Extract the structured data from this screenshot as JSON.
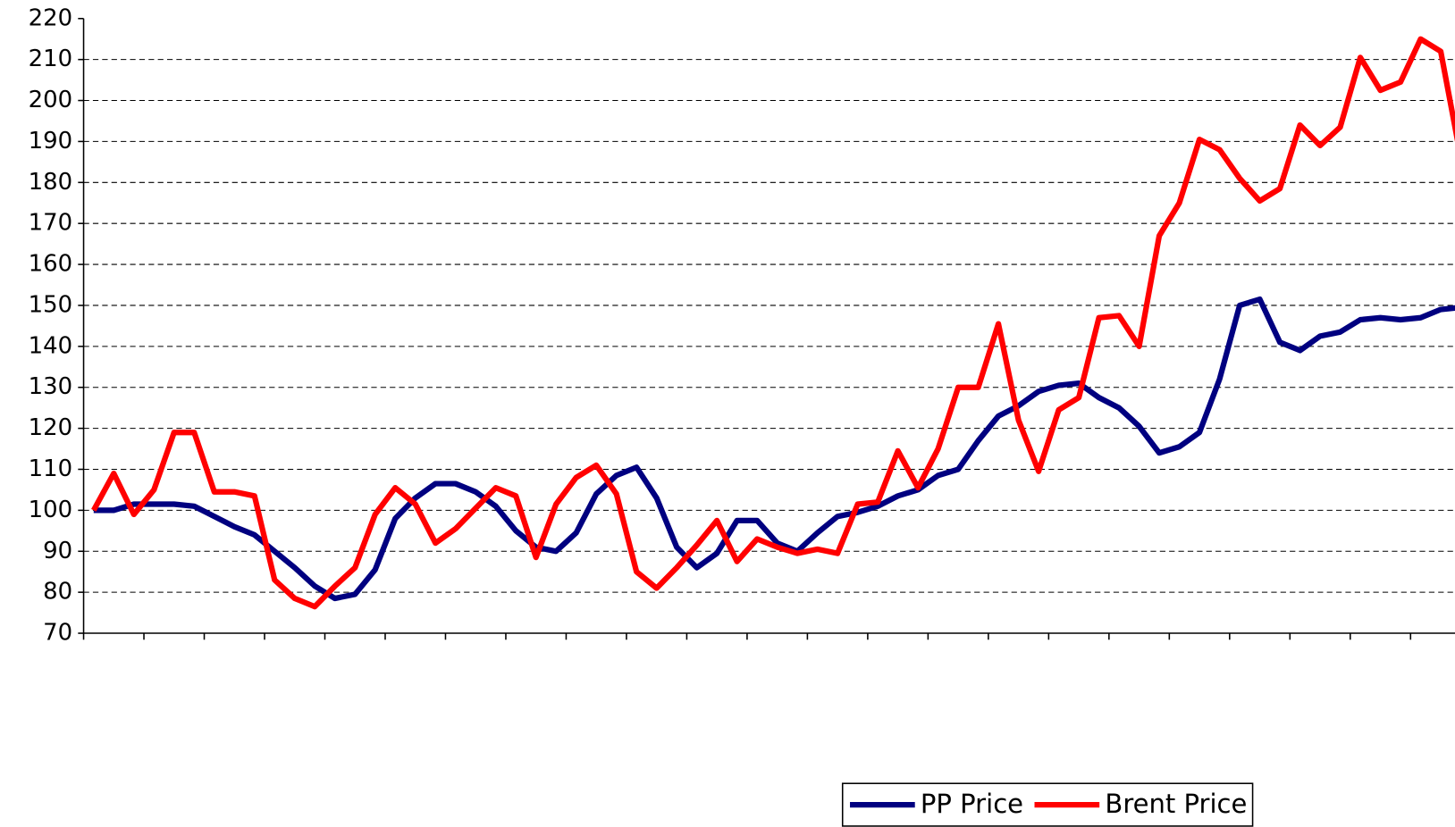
{
  "chart_data": {
    "type": "line",
    "categories": [
      null,
      null,
      null,
      null,
      null,
      null,
      null,
      null,
      null,
      null,
      null,
      null,
      null,
      null,
      null,
      null,
      null,
      null,
      null,
      null,
      null,
      null,
      null,
      null,
      null,
      null,
      null,
      null,
      null,
      null,
      null,
      null,
      null,
      null,
      null,
      null,
      null,
      null,
      null,
      null,
      null,
      null,
      null,
      null,
      null,
      null,
      null,
      null,
      null,
      null,
      null,
      null,
      null,
      null,
      null,
      null,
      null,
      null,
      null,
      null,
      null,
      null,
      null,
      null,
      null,
      null,
      null,
      null,
      null
    ],
    "series": [
      {
        "name": "PP Price",
        "color": "#000080",
        "values": [
          100,
          100,
          101.5,
          101.5,
          101.5,
          101,
          98.5,
          96,
          94,
          90,
          86,
          81.5,
          78.5,
          79.5,
          85.5,
          98,
          103,
          106.5,
          106.5,
          104.5,
          101,
          95,
          91,
          90,
          94.5,
          104,
          108.5,
          110.5,
          103,
          91,
          86,
          89.5,
          97.5,
          97.5,
          92,
          90,
          94.5,
          98.5,
          99.5,
          101,
          103.5,
          105,
          108.5,
          110,
          117,
          123,
          125.5,
          129,
          130.5,
          131,
          127.5,
          125,
          120.5,
          114,
          115.5,
          119,
          132,
          150,
          151.5,
          141,
          139,
          142.5,
          143.5,
          146.5,
          147,
          146.5,
          147,
          149,
          149.5
        ]
      },
      {
        "name": "Brent Price",
        "color": "#ff0000",
        "values": [
          100,
          109,
          99,
          105,
          119,
          119,
          104.5,
          104.5,
          103.5,
          83,
          78.5,
          76.5,
          81.5,
          86,
          99,
          105.5,
          101.5,
          92,
          95.5,
          100.5,
          105.5,
          103.5,
          88.5,
          101.5,
          108,
          111,
          104,
          85,
          81,
          86,
          91.5,
          97.5,
          87.5,
          93,
          91,
          89.5,
          90.5,
          89.5,
          101.5,
          102,
          114.5,
          105.5,
          115,
          130,
          130,
          145.5,
          122,
          109.5,
          124.5,
          127.5,
          147,
          147.5,
          140,
          167,
          175,
          190.5,
          188,
          181,
          175.5,
          178.5,
          194,
          189,
          193.5,
          210.5,
          202.5,
          204.5,
          215,
          212,
          186
        ]
      }
    ],
    "ylim": [
      70,
      220
    ],
    "yticks": [
      70,
      80,
      90,
      100,
      110,
      120,
      130,
      140,
      150,
      160,
      170,
      180,
      190,
      200,
      210,
      220
    ],
    "grid": true,
    "legend": "bottom"
  }
}
